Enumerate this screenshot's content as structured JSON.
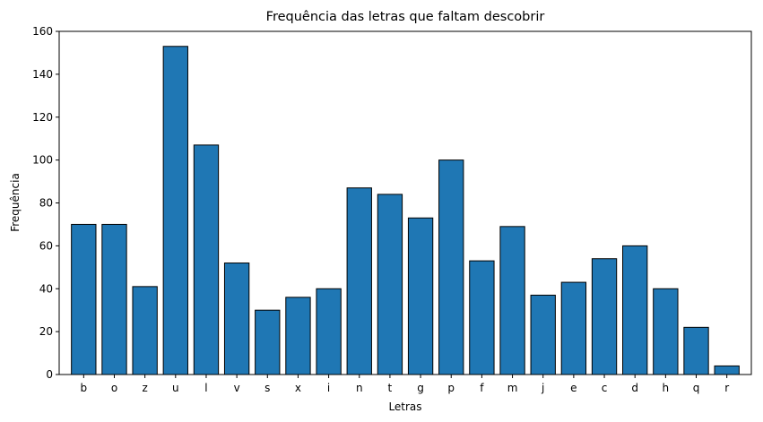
{
  "chart_data": {
    "type": "bar",
    "title": "Frequência das letras que faltam descobrir",
    "xlabel": "Letras",
    "ylabel": "Frequência",
    "categories": [
      "b",
      "o",
      "z",
      "u",
      "l",
      "v",
      "s",
      "x",
      "i",
      "n",
      "t",
      "g",
      "p",
      "f",
      "m",
      "j",
      "e",
      "c",
      "d",
      "h",
      "q",
      "r"
    ],
    "values": [
      70,
      70,
      41,
      153,
      107,
      52,
      30,
      36,
      40,
      87,
      84,
      73,
      100,
      53,
      69,
      37,
      43,
      54,
      60,
      40,
      22,
      4
    ],
    "ylim": [
      0,
      160
    ],
    "yticks": [
      0,
      20,
      40,
      60,
      80,
      100,
      120,
      140,
      160
    ],
    "grid": false,
    "legend": "none",
    "colors": {
      "bar_fill": "#1f77b4",
      "bar_edge": "#000000"
    }
  }
}
